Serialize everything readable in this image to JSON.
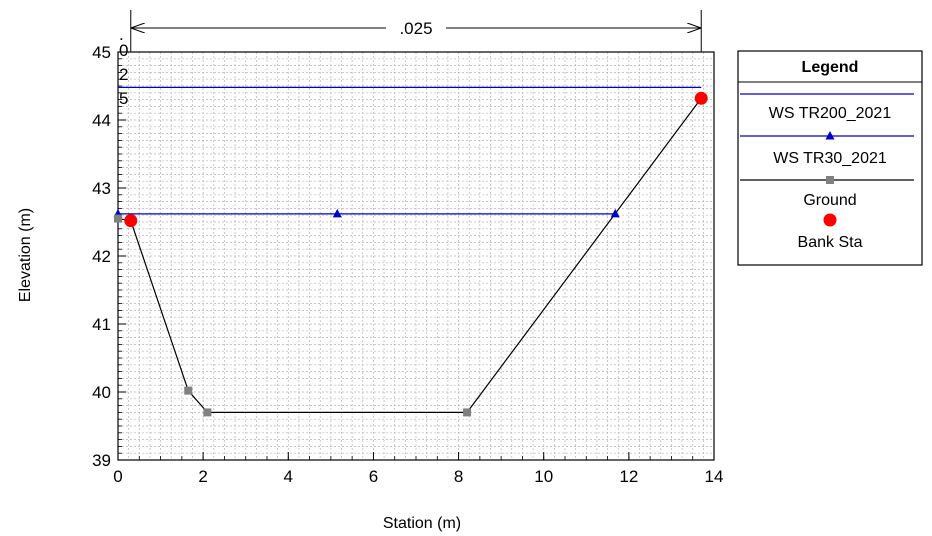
{
  "chart_data": {
    "type": "line",
    "xlabel": "Station (m)",
    "ylabel": "Elevation (m)",
    "xlim": [
      0,
      14
    ],
    "ylim": [
      39,
      45
    ],
    "x_ticks": [
      0,
      2,
      4,
      6,
      8,
      10,
      12,
      14
    ],
    "y_ticks": [
      39,
      40,
      41,
      42,
      43,
      44,
      45
    ],
    "grid": true,
    "legend_position": "right",
    "legend_title": "Legend",
    "manning_n": ".025",
    "manning_start": 0.3,
    "manning_end": 13.7,
    "annotation_chars": [
      ".",
      "0",
      "2",
      "5"
    ],
    "series": [
      {
        "name": "WS TR200_2021",
        "color": "#0000cc",
        "marker": "none",
        "x": [
          0,
          13.7
        ],
        "y": [
          44.48,
          44.48
        ]
      },
      {
        "name": "WS TR30_2021",
        "color": "#0000cc",
        "marker": "triangle",
        "x": [
          0,
          11.68
        ],
        "y": [
          42.62,
          42.62
        ],
        "marker_x": [
          0,
          5.15,
          11.68
        ]
      },
      {
        "name": "Ground",
        "color": "#000000",
        "marker": "square",
        "marker_color": "#808080",
        "x": [
          0,
          0.3,
          1.65,
          2.1,
          8.2,
          13.7
        ],
        "y": [
          42.55,
          42.52,
          40.02,
          39.7,
          39.7,
          44.32
        ]
      },
      {
        "name": "Bank Sta",
        "color": "#ff0000",
        "marker": "circle",
        "x": [
          0.3,
          13.7
        ],
        "y": [
          42.52,
          44.32
        ]
      }
    ]
  }
}
